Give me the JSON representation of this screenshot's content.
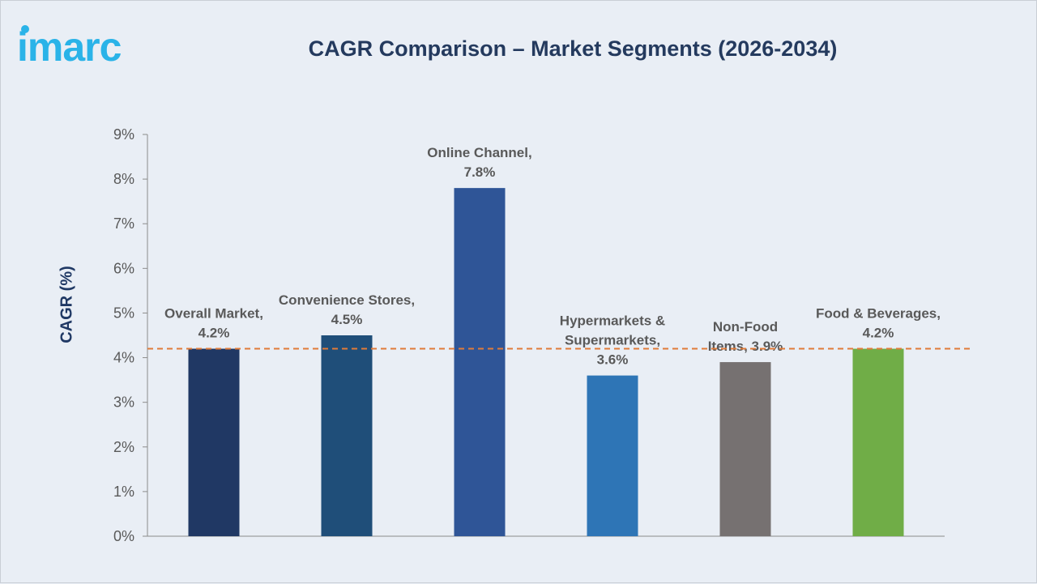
{
  "logo": {
    "text": "imarc",
    "color": "#2ab3e8"
  },
  "chart_data": {
    "type": "bar",
    "title": "CAGR Comparison – Market Segments (2026-2034)",
    "ylabel": "CAGR (%)",
    "xlabel": "",
    "ylim": [
      0,
      9
    ],
    "yticks": [
      "0%",
      "1%",
      "2%",
      "3%",
      "4%",
      "5%",
      "6%",
      "7%",
      "8%",
      "9%"
    ],
    "categories": [
      "Overall Market",
      "Convenience Stores",
      "Online Channel",
      "Hypermarkets & Supermarkets",
      "Non-Food Items",
      "Food & Beverages"
    ],
    "values": [
      4.2,
      4.5,
      7.8,
      3.6,
      3.9,
      4.2
    ],
    "data_labels": [
      [
        "Overall Market,",
        "4.2%"
      ],
      [
        "Convenience Stores,",
        "4.5%"
      ],
      [
        "Online Channel,",
        "7.8%"
      ],
      [
        "Hypermarkets &",
        "Supermarkets,",
        "3.6%"
      ],
      [
        "Non-Food",
        "Items, 3.9%"
      ],
      [
        "Food & Beverages,",
        "4.2%"
      ]
    ],
    "bar_colors": [
      "#203864",
      "#1f4e79",
      "#2f5597",
      "#2e75b6",
      "#767171",
      "#70ad47"
    ],
    "reference_line": {
      "value": 4.2,
      "color": "#e07b39",
      "style": "dashed"
    },
    "grid": false,
    "legend": "none"
  }
}
